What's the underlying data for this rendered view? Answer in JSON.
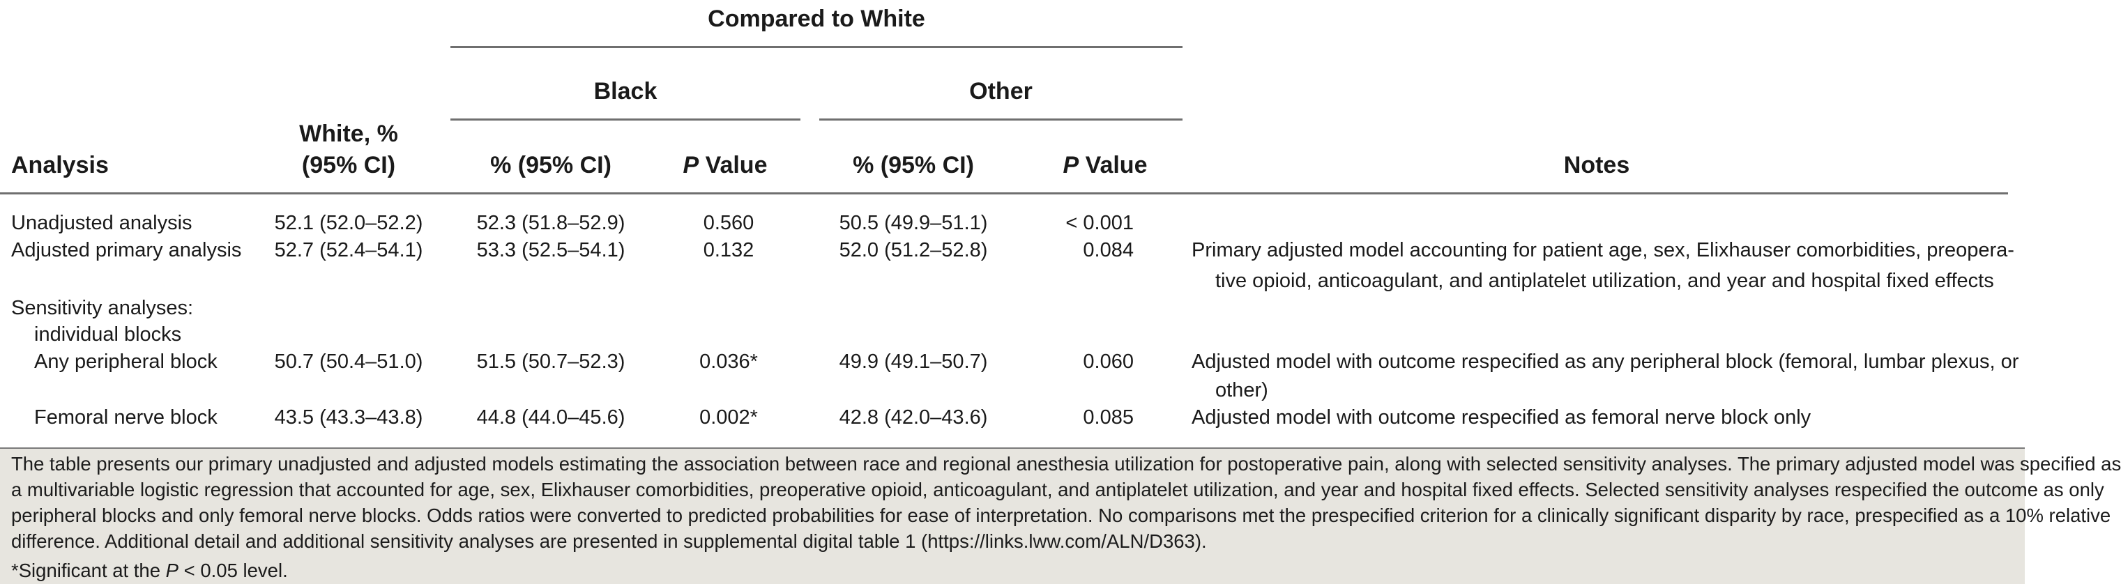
{
  "header": {
    "compared_to": "Compared to White",
    "black": "Black",
    "other": "Other",
    "analysis": "Analysis",
    "white_line1": "White, %",
    "white_line2": "(95% CI)",
    "pct_ci": "% (95% CI)",
    "p": "P",
    "value": " Value",
    "notes": "Notes"
  },
  "rows": [
    {
      "label": "Unadjusted analysis",
      "white": "52.1 (52.0–52.2)",
      "black_pct": "52.3 (51.8–52.9)",
      "black_p": "0.560",
      "other_pct": "50.5 (49.9–51.1)",
      "other_p": "< 0.001",
      "notes_line1": "",
      "notes_line2": ""
    },
    {
      "label": "Adjusted primary analysis",
      "white": "52.7 (52.4–54.1)",
      "black_pct": "53.3 (52.5–54.1)",
      "black_p": "0.132",
      "other_pct": "52.0 (51.2–52.8)",
      "other_p": "0.084",
      "notes_line1": "Primary adjusted model accounting for patient age, sex, Elixhauser comorbidities, preopera-",
      "notes_line2": "tive opioid, anticoagulant, and antiplatelet utilization, and year and hospital fixed effects"
    },
    {
      "label_line1": "Sensitivity analyses:",
      "label_line2": "individual blocks"
    },
    {
      "label": "Any peripheral block",
      "white": "50.7 (50.4–51.0)",
      "black_pct": "51.5 (50.7–52.3)",
      "black_p": "0.036*",
      "other_pct": "49.9 (49.1–50.7)",
      "other_p": "0.060",
      "notes_line1": "Adjusted model with outcome respecified as any peripheral block (femoral, lumbar plexus, or",
      "notes_line2": "other)"
    },
    {
      "label": "Femoral nerve block",
      "white": "43.5 (43.3–43.8)",
      "black_pct": "44.8 (44.0–45.6)",
      "black_p": "0.002*",
      "other_pct": "42.8 (42.0–43.6)",
      "other_p": "0.085",
      "notes_line1": "Adjusted model with outcome respecified as femoral nerve block only",
      "notes_line2": ""
    }
  ],
  "footnote": {
    "lines": [
      "The table presents our primary unadjusted and adjusted models estimating the association between race and regional anesthesia utilization for postoperative pain, along with selected sensitivity analyses. The primary adjusted model was specified as",
      "a multivariable logistic regression that accounted for age, sex, Elixhauser comorbidities, preoperative opioid, anticoagulant, and antiplatelet utilization, and year and hospital fixed effects. Selected sensitivity analyses respecified the outcome as only",
      "peripheral blocks and only femoral nerve blocks. Odds ratios were converted to predicted probabilities for ease of interpretation. No comparisons met the prespecified criterion for a clinically significant disparity by race, prespecified as a 10% relative",
      "difference. Additional detail and additional sensitivity analyses are presented in supplemental digital table 1 (https://links.lww.com/ALN/D363)."
    ],
    "sig_prefix": "*Significant at the ",
    "sig_p": "P",
    "sig_suffix": " < 0.05 level."
  },
  "colors": {
    "rule": "#6f6f6f",
    "footer_bg": "#e7e5df"
  }
}
